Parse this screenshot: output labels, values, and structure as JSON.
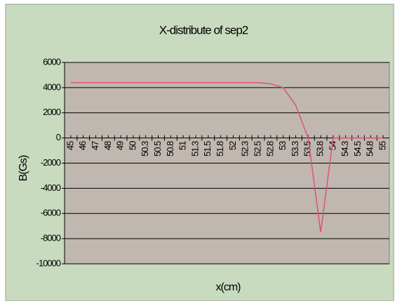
{
  "chart_data": {
    "type": "line",
    "title": "X-distribute of sep2",
    "x_label": "x(cm)",
    "y_label": "B(Gs)",
    "categories": [
      "45",
      "46",
      "47",
      "48",
      "49",
      "50",
      "50.3",
      "50.5",
      "50.8",
      "51",
      "51.3",
      "51.5",
      "51.8",
      "52",
      "52.3",
      "52.5",
      "52.8",
      "53",
      "53.3",
      "53.5",
      "53.8",
      "54",
      "54.3",
      "54.5",
      "54.8",
      "55"
    ],
    "series": [
      {
        "name": "B",
        "color": "#e0507a",
        "values": [
          4400,
          4400,
          4400,
          4400,
          4400,
          4400,
          4400,
          4400,
          4400,
          4400,
          4400,
          4400,
          4400,
          4400,
          4400,
          4400,
          4300,
          4000,
          2600,
          0,
          -7500,
          0,
          0,
          0,
          0,
          0
        ]
      }
    ],
    "ylim": [
      -10000,
      6000
    ],
    "yticks": [
      -10000,
      -8000,
      -6000,
      -4000,
      -2000,
      0,
      2000,
      4000,
      6000
    ],
    "grid": true
  }
}
